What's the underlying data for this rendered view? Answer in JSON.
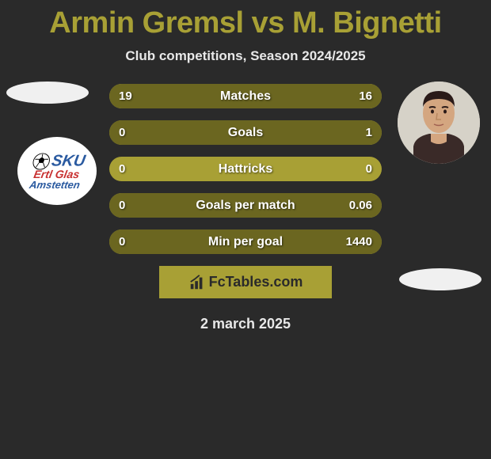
{
  "title": "Armin Gremsl vs M. Bignetti",
  "subtitle": "Club competitions, Season 2024/2025",
  "date": "2 march 2025",
  "footer_brand": "FcTables.com",
  "badge": {
    "line1": "SKU",
    "line2": "Ertl Glas",
    "line3": "Amstetten"
  },
  "colors": {
    "background": "#2a2a2a",
    "accent": "#a8a035",
    "bar_fill": "#6b6620",
    "title_color": "#a8a035",
    "text_light": "#e8e8e8"
  },
  "stats": [
    {
      "label": "Matches",
      "left_val": "19",
      "right_val": "16",
      "left_pct": 54,
      "right_pct": 46
    },
    {
      "label": "Goals",
      "left_val": "0",
      "right_val": "1",
      "left_pct": 0,
      "right_pct": 100
    },
    {
      "label": "Hattricks",
      "left_val": "0",
      "right_val": "0",
      "left_pct": 0,
      "right_pct": 0
    },
    {
      "label": "Goals per match",
      "left_val": "0",
      "right_val": "0.06",
      "left_pct": 0,
      "right_pct": 100
    },
    {
      "label": "Min per goal",
      "left_val": "0",
      "right_val": "1440",
      "left_pct": 0,
      "right_pct": 100
    }
  ]
}
